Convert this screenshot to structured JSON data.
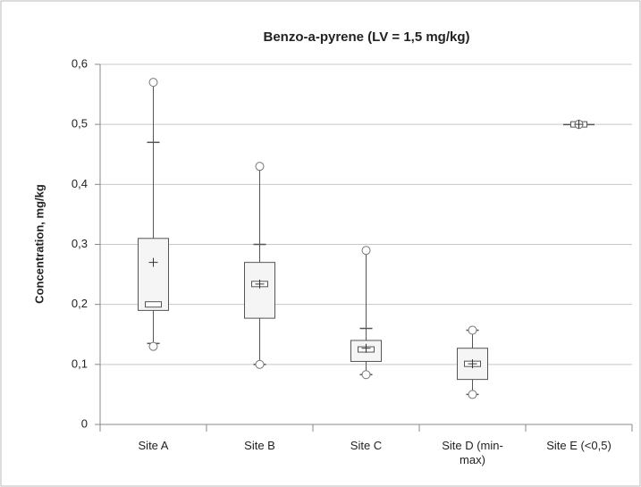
{
  "chart_data": {
    "type": "box",
    "title": "Benzo-a-pyrene (LV = 1,5 mg/kg)",
    "y_label": "Concentration, mg/kg",
    "categories": [
      "Site A",
      "Site B",
      "Site C",
      "Site D (min-\nmax)",
      "Site E (<0,5)"
    ],
    "max": [
      0.57,
      0.43,
      0.29,
      0.157,
      0.5
    ],
    "whisker_high": [
      0.47,
      0.3,
      0.16,
      0.157,
      0.5
    ],
    "q3": [
      0.31,
      0.27,
      0.14,
      0.127,
      0.5
    ],
    "median": [
      0.2,
      0.234,
      0.125,
      0.101,
      0.5
    ],
    "q1": [
      0.19,
      0.177,
      0.105,
      0.075,
      0.5
    ],
    "whisker_low": [
      0.135,
      0.1,
      0.083,
      0.05,
      0.5
    ],
    "min": [
      0.13,
      0.1,
      0.083,
      0.05,
      0.5
    ],
    "mean": [
      0.27,
      0.234,
      0.127,
      0.101,
      0.5
    ],
    "ylim": [
      0,
      0.6
    ],
    "yticks": [
      0,
      {
        "value": 0.1,
        "label": "0,1"
      },
      {
        "value": 0.2,
        "label": "0,2"
      },
      {
        "value": 0.3,
        "label": "0,3"
      },
      {
        "value": 0.4,
        "label": "0,4"
      },
      {
        "value": 0.5,
        "label": "0,5"
      },
      {
        "value": 0.6,
        "label": "0,6"
      }
    ],
    "grid": true
  }
}
